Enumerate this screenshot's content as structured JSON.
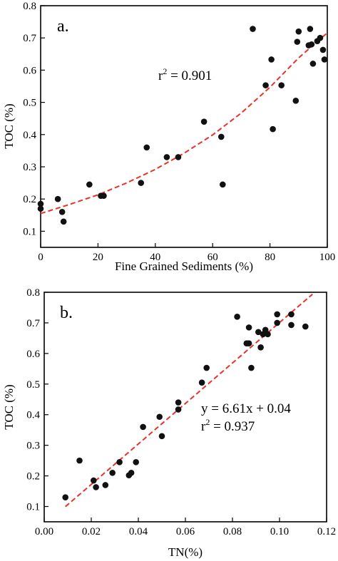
{
  "chart_data": [
    {
      "type": "scatter",
      "panel_label": "a.",
      "xlabel": "Fine Grained Sediments (%)",
      "ylabel": "TOC (%)",
      "xlim": [
        0,
        100
      ],
      "ylim": [
        0.05,
        0.8
      ],
      "xticks": [
        0,
        20,
        40,
        60,
        80,
        100
      ],
      "xtick_labels": [
        "0",
        "20",
        "40",
        "60",
        "80",
        "100"
      ],
      "yticks": [
        0.1,
        0.2,
        0.3,
        0.4,
        0.5,
        0.6,
        0.7,
        0.8
      ],
      "ytick_labels": [
        "0.1",
        "0.2",
        "0.3",
        "0.4",
        "0.5",
        "0.6",
        "0.7",
        "0.8"
      ],
      "annotation": {
        "r_symbol": "r",
        "exponent": "2",
        "value_text": " = 0.901"
      },
      "fit": {
        "type": "exponential",
        "x": [
          0,
          10,
          20,
          30,
          40,
          50,
          60,
          70,
          80,
          90,
          100
        ],
        "y": [
          0.155,
          0.183,
          0.213,
          0.25,
          0.292,
          0.342,
          0.399,
          0.467,
          0.547,
          0.638,
          0.716
        ]
      },
      "points": {
        "x": [
          0,
          0,
          6,
          7.5,
          8,
          17,
          21,
          22,
          35,
          37,
          44,
          48,
          57,
          63,
          63.5,
          74,
          78.5,
          80.5,
          81,
          84,
          89,
          89.5,
          90,
          93.5,
          94,
          94.5,
          95,
          96.5,
          97.5,
          98.5,
          99
        ],
        "y": [
          0.185,
          0.17,
          0.2,
          0.16,
          0.13,
          0.245,
          0.21,
          0.21,
          0.25,
          0.36,
          0.33,
          0.33,
          0.44,
          0.393,
          0.245,
          0.728,
          0.553,
          0.633,
          0.417,
          0.553,
          0.505,
          0.688,
          0.72,
          0.677,
          0.728,
          0.68,
          0.62,
          0.69,
          0.7,
          0.663,
          0.633
        ]
      }
    },
    {
      "type": "scatter",
      "panel_label": "b.",
      "xlabel": "TN(%)",
      "ylabel": "TOC (%)",
      "xlim": [
        0,
        0.12
      ],
      "ylim": [
        0.05,
        0.8
      ],
      "xticks": [
        0,
        0.02,
        0.04,
        0.06,
        0.08,
        0.1,
        0.12
      ],
      "xtick_labels": [
        "0.00",
        "0.02",
        "0.04",
        "0.06",
        "0.08",
        "0.10",
        "0.12"
      ],
      "yticks": [
        0.1,
        0.2,
        0.3,
        0.4,
        0.5,
        0.6,
        0.7,
        0.8
      ],
      "ytick_labels": [
        "0.1",
        "0.2",
        "0.3",
        "0.4",
        "0.5",
        "0.6",
        "0.7",
        "0.8"
      ],
      "annotation": {
        "equation": "y = 6.61x + 0.04",
        "r_symbol": "r",
        "exponent": "2",
        "value_text": " = 0.937"
      },
      "fit": {
        "type": "linear",
        "slope": 6.61,
        "intercept": 0.04,
        "x": [
          0.009,
          0.114
        ]
      },
      "points": {
        "x": [
          0.009,
          0.015,
          0.021,
          0.022,
          0.026,
          0.029,
          0.032,
          0.036,
          0.037,
          0.039,
          0.042,
          0.049,
          0.05,
          0.057,
          0.057,
          0.067,
          0.069,
          0.082,
          0.086,
          0.087,
          0.087,
          0.088,
          0.091,
          0.092,
          0.093,
          0.094,
          0.095,
          0.099,
          0.099,
          0.105,
          0.105,
          0.111
        ],
        "y": [
          0.13,
          0.25,
          0.185,
          0.163,
          0.17,
          0.21,
          0.245,
          0.202,
          0.21,
          0.245,
          0.36,
          0.393,
          0.33,
          0.417,
          0.44,
          0.505,
          0.553,
          0.72,
          0.633,
          0.633,
          0.685,
          0.553,
          0.67,
          0.62,
          0.663,
          0.677,
          0.663,
          0.7,
          0.728,
          0.728,
          0.693,
          0.688
        ]
      }
    }
  ]
}
